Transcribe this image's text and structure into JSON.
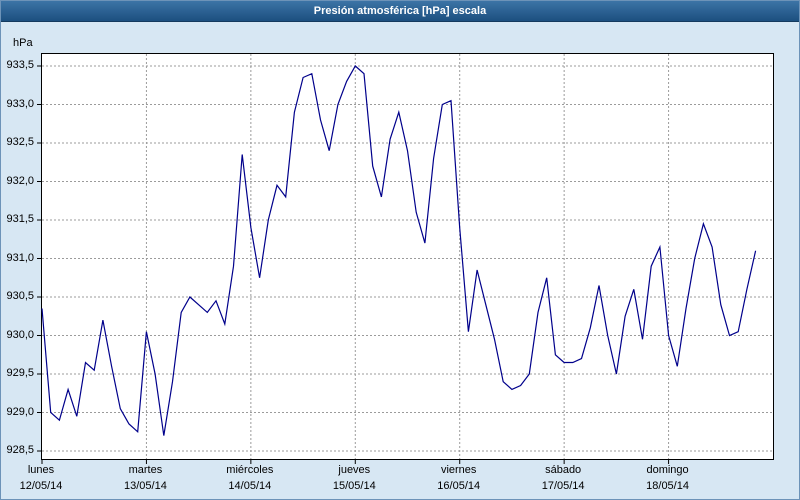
{
  "window": {
    "title": "Presión atmosférica [hPa] escala"
  },
  "colors": {
    "background": "#d7e7f3",
    "titlebar_top": "#3c74a6",
    "titlebar_bottom": "#1c4f7f",
    "title_text": "#ffffff",
    "plot_background": "#ffffff",
    "grid": "#9b9b9b",
    "axis": "#000000",
    "line": "#00008b"
  },
  "chart_data": {
    "type": "line",
    "title": "Presión atmosférica [hPa] escala",
    "ylabel": "hPa",
    "xlabel": "",
    "ylim": [
      928.5,
      933.5
    ],
    "xlim_hours": [
      0,
      168
    ],
    "grid": true,
    "legend_position": "none",
    "y_ticks": [
      {
        "value": 933.5,
        "label": "933,5"
      },
      {
        "value": 933.0,
        "label": "933,0"
      },
      {
        "value": 932.5,
        "label": "932,5"
      },
      {
        "value": 932.0,
        "label": "932,0"
      },
      {
        "value": 931.5,
        "label": "931,5"
      },
      {
        "value": 931.0,
        "label": "931,0"
      },
      {
        "value": 930.5,
        "label": "930,5"
      },
      {
        "value": 930.0,
        "label": "930,0"
      },
      {
        "value": 929.5,
        "label": "929,5"
      },
      {
        "value": 929.0,
        "label": "929,0"
      },
      {
        "value": 928.5,
        "label": "928,5"
      }
    ],
    "x_ticks": [
      {
        "hour": 0,
        "day": "lunes",
        "date": "12/05/14"
      },
      {
        "hour": 24,
        "day": "martes",
        "date": "13/05/14"
      },
      {
        "hour": 48,
        "day": "miércoles",
        "date": "14/05/14"
      },
      {
        "hour": 72,
        "day": "jueves",
        "date": "15/05/14"
      },
      {
        "hour": 96,
        "day": "viernes",
        "date": "16/05/14"
      },
      {
        "hour": 120,
        "day": "sábado",
        "date": "17/05/14"
      },
      {
        "hour": 144,
        "day": "domingo",
        "date": "18/05/14"
      }
    ],
    "series": [
      {
        "name": "Presión atmosférica [hPa]",
        "color": "#00008b",
        "points": [
          [
            0,
            930.35
          ],
          [
            2,
            929.0
          ],
          [
            4,
            928.9
          ],
          [
            6,
            929.3
          ],
          [
            8,
            928.95
          ],
          [
            10,
            929.65
          ],
          [
            12,
            929.55
          ],
          [
            14,
            930.2
          ],
          [
            16,
            929.6
          ],
          [
            18,
            929.05
          ],
          [
            20,
            928.85
          ],
          [
            22,
            928.75
          ],
          [
            24,
            930.05
          ],
          [
            26,
            929.5
          ],
          [
            28,
            928.7
          ],
          [
            30,
            929.4
          ],
          [
            32,
            930.3
          ],
          [
            34,
            930.5
          ],
          [
            36,
            930.4
          ],
          [
            38,
            930.3
          ],
          [
            40,
            930.45
          ],
          [
            42,
            930.15
          ],
          [
            44,
            930.9
          ],
          [
            46,
            932.35
          ],
          [
            48,
            931.4
          ],
          [
            50,
            930.75
          ],
          [
            52,
            931.5
          ],
          [
            54,
            931.95
          ],
          [
            56,
            931.8
          ],
          [
            58,
            932.9
          ],
          [
            60,
            933.35
          ],
          [
            62,
            933.4
          ],
          [
            64,
            932.8
          ],
          [
            66,
            932.4
          ],
          [
            68,
            933.0
          ],
          [
            70,
            933.3
          ],
          [
            72,
            933.5
          ],
          [
            74,
            933.4
          ],
          [
            76,
            932.2
          ],
          [
            78,
            931.8
          ],
          [
            80,
            932.55
          ],
          [
            82,
            932.9
          ],
          [
            84,
            932.4
          ],
          [
            86,
            931.6
          ],
          [
            88,
            931.2
          ],
          [
            90,
            932.3
          ],
          [
            92,
            933.0
          ],
          [
            94,
            933.05
          ],
          [
            96,
            931.4
          ],
          [
            98,
            930.05
          ],
          [
            100,
            930.85
          ],
          [
            102,
            930.4
          ],
          [
            104,
            929.95
          ],
          [
            106,
            929.4
          ],
          [
            108,
            929.3
          ],
          [
            110,
            929.35
          ],
          [
            112,
            929.5
          ],
          [
            114,
            930.3
          ],
          [
            116,
            930.75
          ],
          [
            118,
            929.75
          ],
          [
            120,
            929.65
          ],
          [
            122,
            929.65
          ],
          [
            124,
            929.7
          ],
          [
            126,
            930.1
          ],
          [
            128,
            930.65
          ],
          [
            130,
            930.0
          ],
          [
            132,
            929.5
          ],
          [
            134,
            930.25
          ],
          [
            136,
            930.6
          ],
          [
            138,
            929.95
          ],
          [
            140,
            930.9
          ],
          [
            142,
            931.15
          ],
          [
            144,
            930.0
          ],
          [
            146,
            929.6
          ],
          [
            148,
            930.35
          ],
          [
            150,
            931.0
          ],
          [
            152,
            931.45
          ],
          [
            154,
            931.15
          ],
          [
            156,
            930.4
          ],
          [
            158,
            930.0
          ],
          [
            160,
            930.05
          ],
          [
            162,
            930.6
          ],
          [
            164,
            931.1
          ]
        ]
      }
    ]
  }
}
